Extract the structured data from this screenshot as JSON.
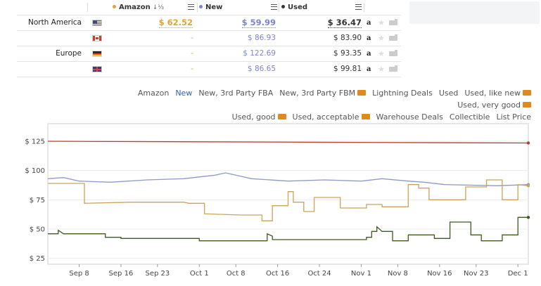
{
  "table": {
    "headers": {
      "amazon": "Amazon",
      "amazon_sort": "↓⅓",
      "new": "New",
      "used": "Used"
    },
    "colors": {
      "amazon": "#e0a23a",
      "new": "#7d84c9",
      "used": "#333333"
    },
    "rows": [
      {
        "region": "North America",
        "flag": "us-flag-icon",
        "amazon": "$ 62.52",
        "new": "$ 59.99",
        "used": "$ 36.47",
        "icons": [
          "amazon-icon",
          "star-icon",
          "truck-icon"
        ]
      },
      {
        "region": "",
        "flag": "ca-flag-icon",
        "amazon": "-",
        "new": "$ 86.93",
        "used": "$ 83.90",
        "icons": [
          "amazon-icon",
          "star-icon",
          "truck-icon"
        ]
      },
      {
        "region": "Europe",
        "flag": "de-flag-icon",
        "amazon": "-",
        "new": "$ 122.69",
        "used": "$ 93.35",
        "icons": [
          "amazon-icon",
          "star-icon",
          "truck-icon"
        ]
      },
      {
        "region": "",
        "flag": "uk-flag-icon",
        "amazon": "-",
        "new": "$ 86.65",
        "used": "$ 99.81",
        "icons": [
          "amazon-icon",
          "star-icon",
          "truck-icon"
        ]
      }
    ]
  },
  "legend": {
    "items": [
      "Amazon",
      "New",
      "New, 3rd Party FBA",
      "New, 3rd Party FBM",
      "Lightning Deals",
      "Used",
      "Used, like new",
      "Used, very good",
      "Used, good",
      "Used, acceptable",
      "Warehouse Deals",
      "Collectible",
      "List Price"
    ],
    "active": "New",
    "with_truck": [
      "New, 3rd Party FBM",
      "Used, like new",
      "Used, very good",
      "Used, good",
      "Used, acceptable"
    ]
  },
  "chart_data": {
    "type": "line",
    "y_ticks": [
      "$ 25",
      "$ 50",
      "$ 75",
      "$ 100",
      "$ 125"
    ],
    "ylim": [
      20,
      140
    ],
    "x_ticks": [
      "Sep 8",
      "Sep 16",
      "Sep 23",
      "Oct 1",
      "Oct 8",
      "Oct 16",
      "Oct 24",
      "Nov 1",
      "Nov 8",
      "Nov 16",
      "Nov 23",
      "Dec 1"
    ],
    "x_tick_days": [
      0,
      8,
      15,
      23,
      30,
      38,
      46,
      54,
      61,
      69,
      76,
      84
    ],
    "x_range": [
      -6,
      86
    ],
    "series": [
      {
        "color": "#c0392b",
        "points": [
          [
            -6,
            125
          ],
          [
            86,
            123.5
          ]
        ]
      },
      {
        "color": "#8f98c8",
        "points": [
          [
            -6,
            93
          ],
          [
            -3,
            94
          ],
          [
            0,
            91
          ],
          [
            6,
            90
          ],
          [
            13,
            92
          ],
          [
            20,
            93
          ],
          [
            26,
            96
          ],
          [
            28,
            98
          ],
          [
            30,
            96
          ],
          [
            33,
            93
          ],
          [
            40,
            91
          ],
          [
            47,
            92
          ],
          [
            54,
            91
          ],
          [
            58,
            93
          ],
          [
            63,
            91
          ],
          [
            66,
            90
          ],
          [
            70,
            88
          ],
          [
            80,
            87
          ],
          [
            86,
            88
          ]
        ]
      },
      {
        "color": "#c9a45a",
        "points": [
          [
            -6,
            89
          ],
          [
            1,
            89
          ],
          [
            1,
            72
          ],
          [
            10,
            73
          ],
          [
            20,
            73
          ],
          [
            21,
            72
          ],
          [
            24,
            72
          ],
          [
            24,
            63
          ],
          [
            31,
            62
          ],
          [
            35,
            62
          ],
          [
            35,
            57
          ],
          [
            37,
            57
          ],
          [
            37,
            70
          ],
          [
            40,
            70
          ],
          [
            40,
            82
          ],
          [
            41,
            82
          ],
          [
            41,
            73
          ],
          [
            43,
            73
          ],
          [
            43,
            65
          ],
          [
            45,
            65
          ],
          [
            45,
            77
          ],
          [
            50,
            77
          ],
          [
            50,
            68
          ],
          [
            55,
            68
          ],
          [
            55,
            71
          ],
          [
            58,
            71
          ],
          [
            58,
            69
          ],
          [
            63,
            69
          ],
          [
            63,
            88
          ],
          [
            65,
            88
          ],
          [
            65,
            85
          ],
          [
            67,
            85
          ],
          [
            67,
            75
          ],
          [
            74,
            75
          ],
          [
            74,
            86
          ],
          [
            78,
            86
          ],
          [
            78,
            92
          ],
          [
            81,
            92
          ],
          [
            81,
            75
          ],
          [
            84,
            75
          ],
          [
            84,
            88
          ],
          [
            86,
            87
          ]
        ]
      },
      {
        "color": "#3e5a1e",
        "points": [
          [
            -6,
            46
          ],
          [
            -4,
            46
          ],
          [
            -4,
            49
          ],
          [
            -3,
            46
          ],
          [
            5,
            46
          ],
          [
            5,
            43
          ],
          [
            8,
            43
          ],
          [
            8,
            42
          ],
          [
            23,
            42
          ],
          [
            23,
            40
          ],
          [
            36,
            40
          ],
          [
            36,
            46
          ],
          [
            37,
            44
          ],
          [
            37,
            41
          ],
          [
            45,
            41
          ],
          [
            53,
            41
          ],
          [
            55,
            41
          ],
          [
            55,
            43
          ],
          [
            56,
            43
          ],
          [
            56,
            48
          ],
          [
            57,
            48
          ],
          [
            57,
            52
          ],
          [
            58,
            48
          ],
          [
            60,
            48
          ],
          [
            60,
            40
          ],
          [
            63,
            40
          ],
          [
            63,
            45
          ],
          [
            68,
            45
          ],
          [
            68,
            42
          ],
          [
            71,
            42
          ],
          [
            71,
            56
          ],
          [
            75,
            56
          ],
          [
            75,
            45
          ],
          [
            77,
            45
          ],
          [
            77,
            40
          ],
          [
            81,
            40
          ],
          [
            81,
            45
          ],
          [
            84,
            45
          ],
          [
            84,
            60
          ],
          [
            86,
            60
          ]
        ]
      }
    ]
  }
}
